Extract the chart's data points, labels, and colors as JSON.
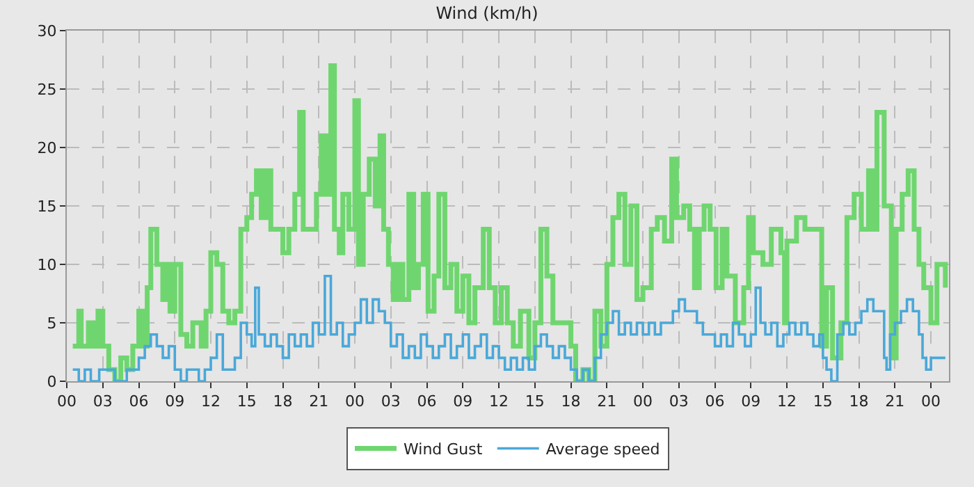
{
  "chart_data": {
    "type": "step",
    "title": "Wind (km/h)",
    "xlim": [
      0,
      73.5
    ],
    "ylim": [
      0,
      30
    ],
    "xticks": [
      {
        "value": 0,
        "label": "00"
      },
      {
        "value": 3,
        "label": "03"
      },
      {
        "value": 6,
        "label": "06"
      },
      {
        "value": 9,
        "label": "09"
      },
      {
        "value": 12,
        "label": "12"
      },
      {
        "value": 15,
        "label": "15"
      },
      {
        "value": 18,
        "label": "18"
      },
      {
        "value": 21,
        "label": "21"
      },
      {
        "value": 24,
        "label": "00"
      },
      {
        "value": 27,
        "label": "03"
      },
      {
        "value": 30,
        "label": "06"
      },
      {
        "value": 33,
        "label": "09"
      },
      {
        "value": 36,
        "label": "12"
      },
      {
        "value": 39,
        "label": "15"
      },
      {
        "value": 42,
        "label": "18"
      },
      {
        "value": 45,
        "label": "21"
      },
      {
        "value": 48,
        "label": "00"
      },
      {
        "value": 51,
        "label": "03"
      },
      {
        "value": 54,
        "label": "06"
      },
      {
        "value": 57,
        "label": "09"
      },
      {
        "value": 60,
        "label": "12"
      },
      {
        "value": 63,
        "label": "15"
      },
      {
        "value": 66,
        "label": "18"
      },
      {
        "value": 69,
        "label": "21"
      },
      {
        "value": 72,
        "label": "00"
      }
    ],
    "yticks": [
      0,
      5,
      10,
      15,
      20,
      25,
      30
    ],
    "grid": true,
    "legend": "bottom",
    "marker": "none",
    "line_style": "solid",
    "series": [
      {
        "name": "Wind Gust",
        "color": "#6fd66f",
        "x": [
          0.5,
          1.0,
          1.2,
          1.8,
          2.2,
          2.6,
          3.0,
          3.5,
          4.0,
          4.5,
          5.0,
          5.5,
          6.0,
          6.4,
          6.7,
          7.0,
          7.5,
          8.0,
          8.3,
          8.6,
          9.0,
          9.5,
          10.0,
          10.5,
          11.2,
          11.6,
          12.0,
          12.5,
          13.0,
          13.5,
          14.0,
          14.5,
          15.0,
          15.4,
          15.8,
          16.2,
          16.6,
          17.0,
          17.5,
          18.0,
          18.5,
          19.0,
          19.4,
          19.7,
          20.0,
          20.4,
          20.8,
          21.2,
          21.6,
          22.0,
          22.3,
          22.7,
          23.0,
          23.5,
          24.0,
          24.3,
          24.7,
          25.2,
          25.7,
          26.1,
          26.4,
          26.8,
          27.2,
          27.6,
          28.0,
          28.5,
          28.9,
          29.3,
          29.7,
          30.1,
          30.6,
          31.0,
          31.5,
          32.0,
          32.5,
          33.0,
          33.5,
          34.0,
          34.7,
          35.2,
          35.7,
          36.2,
          36.7,
          37.2,
          37.8,
          38.5,
          39.0,
          39.5,
          40.0,
          40.5,
          41.0,
          41.5,
          42.0,
          42.4,
          43.0,
          43.5,
          44.0,
          44.5,
          45.0,
          45.5,
          46.0,
          46.5,
          47.0,
          47.5,
          48.0,
          48.7,
          49.2,
          49.8,
          50.4,
          50.8,
          51.4,
          51.9,
          52.3,
          52.7,
          53.1,
          53.6,
          54.1,
          54.6,
          55.0,
          55.7,
          56.4,
          56.8,
          57.2,
          58.0,
          58.7,
          59.5,
          59.8,
          60.0,
          60.8,
          61.5,
          62.5,
          62.9,
          63.3,
          63.8,
          64.5,
          65.0,
          65.6,
          66.2,
          66.8,
          67.2,
          67.5,
          68.1,
          68.7,
          69.1,
          69.6,
          70.1,
          70.6,
          71.0,
          71.4,
          72.0,
          72.5,
          73.2
        ],
        "values": [
          3,
          6,
          3,
          5,
          3,
          6,
          3,
          1,
          0,
          2,
          1,
          3,
          6,
          3,
          8,
          13,
          10,
          7,
          10,
          6,
          10,
          4,
          3,
          5,
          3,
          6,
          11,
          10,
          6,
          5,
          6,
          13,
          14,
          16,
          18,
          14,
          18,
          13,
          13,
          11,
          13,
          16,
          23,
          13,
          13,
          13,
          16,
          21,
          16,
          27,
          13,
          11,
          16,
          13,
          24,
          10,
          16,
          19,
          15,
          21,
          13,
          10,
          7,
          10,
          7,
          16,
          8,
          10,
          16,
          6,
          9,
          16,
          8,
          10,
          6,
          9,
          5,
          8,
          13,
          8,
          5,
          8,
          5,
          3,
          6,
          2,
          5,
          13,
          9,
          5,
          5,
          5,
          3,
          0,
          1,
          0,
          6,
          3,
          10,
          14,
          16,
          10,
          15,
          7,
          8,
          13,
          14,
          12,
          19,
          14,
          15,
          13,
          8,
          13,
          15,
          13,
          8,
          13,
          9,
          5,
          8,
          14,
          11,
          10,
          13,
          11,
          5,
          12,
          14,
          13,
          13,
          3,
          8,
          2,
          5,
          14,
          16,
          13,
          18,
          13,
          23,
          15,
          2,
          13,
          16,
          18,
          13,
          10,
          8,
          5,
          10,
          8
        ]
      },
      {
        "name": "Average speed",
        "color": "#4aa8d8",
        "x": [
          0.5,
          1.0,
          1.5,
          2.0,
          2.7,
          3.2,
          4.0,
          4.5,
          5.0,
          5.5,
          6.0,
          6.5,
          7.0,
          7.5,
          8.0,
          8.5,
          9.0,
          9.5,
          10.0,
          10.5,
          11.0,
          11.5,
          12.0,
          12.5,
          13.0,
          13.5,
          14.0,
          14.5,
          15.0,
          15.4,
          15.7,
          16.0,
          16.5,
          17.0,
          17.5,
          18.0,
          18.5,
          19.0,
          19.5,
          20.0,
          20.5,
          21.0,
          21.5,
          22.0,
          22.5,
          23.0,
          23.5,
          24.0,
          24.5,
          25.0,
          25.5,
          26.0,
          26.5,
          27.0,
          27.5,
          28.0,
          28.5,
          29.0,
          29.5,
          30.0,
          30.5,
          31.0,
          31.5,
          32.0,
          32.5,
          33.0,
          33.5,
          34.0,
          34.5,
          35.0,
          35.5,
          36.0,
          36.5,
          37.0,
          37.5,
          38.0,
          38.5,
          39.0,
          39.5,
          40.0,
          40.5,
          41.0,
          41.5,
          42.0,
          42.5,
          43.0,
          43.5,
          44.0,
          44.5,
          45.0,
          45.5,
          46.0,
          46.5,
          47.0,
          47.5,
          48.0,
          48.5,
          49.0,
          49.5,
          50.0,
          50.5,
          51.0,
          51.5,
          52.0,
          52.5,
          53.0,
          53.5,
          54.0,
          54.5,
          55.0,
          55.5,
          56.0,
          56.5,
          57.0,
          57.4,
          57.8,
          58.2,
          58.7,
          59.2,
          59.7,
          60.2,
          60.7,
          61.2,
          61.7,
          62.2,
          62.7,
          63.0,
          63.3,
          63.7,
          64.2,
          64.7,
          65.2,
          65.7,
          66.2,
          66.7,
          67.2,
          67.7,
          68.1,
          68.3,
          68.6,
          69.0,
          69.5,
          70.0,
          70.5,
          71.0,
          71.3,
          71.6,
          72.0,
          73.2
        ],
        "values": [
          1,
          0,
          1,
          0,
          1,
          1,
          0,
          0,
          1,
          1,
          2,
          3,
          4,
          3,
          2,
          3,
          1,
          0,
          1,
          1,
          0,
          1,
          2,
          4,
          1,
          1,
          2,
          5,
          4,
          3,
          8,
          4,
          3,
          4,
          3,
          2,
          4,
          3,
          4,
          3,
          5,
          4,
          9,
          4,
          5,
          3,
          4,
          5,
          7,
          5,
          7,
          6,
          5,
          3,
          4,
          2,
          3,
          2,
          4,
          3,
          2,
          3,
          4,
          2,
          3,
          4,
          2,
          3,
          4,
          2,
          3,
          2,
          1,
          2,
          1,
          2,
          1,
          3,
          4,
          3,
          2,
          3,
          2,
          1,
          0,
          1,
          0,
          2,
          4,
          5,
          6,
          4,
          5,
          4,
          5,
          4,
          5,
          4,
          5,
          5,
          6,
          7,
          6,
          6,
          5,
          4,
          4,
          3,
          4,
          3,
          5,
          4,
          3,
          4,
          8,
          5,
          4,
          5,
          3,
          4,
          5,
          4,
          5,
          4,
          3,
          4,
          2,
          1,
          0,
          4,
          5,
          4,
          5,
          6,
          7,
          6,
          6,
          2,
          1,
          4,
          5,
          6,
          7,
          6,
          4,
          2,
          1,
          2,
          2
        ]
      }
    ]
  }
}
